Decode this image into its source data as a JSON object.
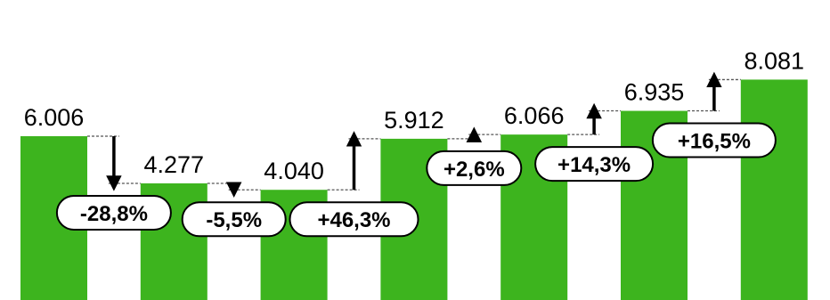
{
  "chart_data": {
    "type": "bar",
    "categories": [
      "",
      "",
      "",
      "",
      "",
      "",
      ""
    ],
    "values": [
      6006,
      4277,
      4040,
      5912,
      6066,
      6935,
      8081
    ],
    "value_labels": [
      "6.006",
      "4.277",
      "4.040",
      "5.912",
      "6.066",
      "6.935",
      "8.081"
    ],
    "changes": [
      {
        "from_index": 0,
        "to_index": 1,
        "label": "-28,8%",
        "direction": "down"
      },
      {
        "from_index": 1,
        "to_index": 2,
        "label": "-5,5%",
        "direction": "down"
      },
      {
        "from_index": 2,
        "to_index": 3,
        "label": "+46,3%",
        "direction": "up"
      },
      {
        "from_index": 3,
        "to_index": 4,
        "label": "+2,6%",
        "direction": "up"
      },
      {
        "from_index": 4,
        "to_index": 5,
        "label": "+14,3%",
        "direction": "up"
      },
      {
        "from_index": 5,
        "to_index": 6,
        "label": "+16,5%",
        "direction": "up"
      }
    ],
    "title": "",
    "xlabel": "",
    "ylabel": "",
    "ylim": [
      0,
      11000
    ],
    "grid": false,
    "legend": "none",
    "colors": {
      "bar": "#3DB41E",
      "arrow": "#000000",
      "connector": "#555555",
      "bubble_fill": "#ffffff",
      "bubble_stroke": "#000000"
    }
  }
}
